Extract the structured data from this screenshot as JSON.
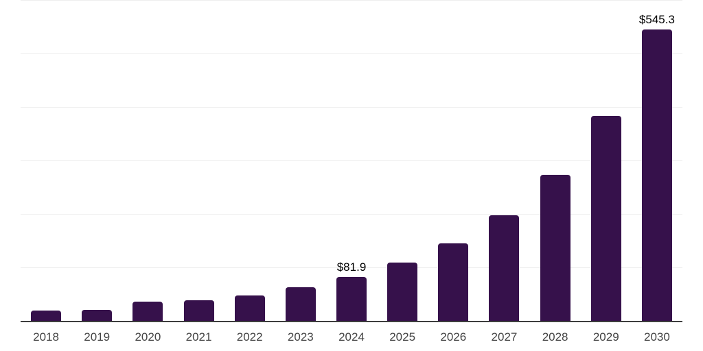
{
  "chart_data": {
    "type": "bar",
    "title": "",
    "xlabel": "",
    "ylabel": "",
    "categories": [
      "2018",
      "2019",
      "2020",
      "2021",
      "2022",
      "2023",
      "2024",
      "2025",
      "2026",
      "2027",
      "2028",
      "2029",
      "2030"
    ],
    "values": [
      19.2,
      20.0,
      35.9,
      39.1,
      48.0,
      62.7,
      81.9,
      108.7,
      144.5,
      197.4,
      272.7,
      383.3,
      545.3
    ],
    "value_labels": [
      "",
      "",
      "",
      "",
      "",
      "",
      "$81.9",
      "",
      "",
      "",
      "",
      "",
      "$545.3"
    ],
    "ylim": [
      0,
      600
    ],
    "gridline_step": 100,
    "grid": "horizontal",
    "legend": "none",
    "colors": {
      "bar": "#36114b",
      "axis_line": "#3d3d3d",
      "gridline": "#eeeeee",
      "tick_label": "#444444",
      "value_label": "#000000",
      "background": "#ffffff"
    }
  }
}
